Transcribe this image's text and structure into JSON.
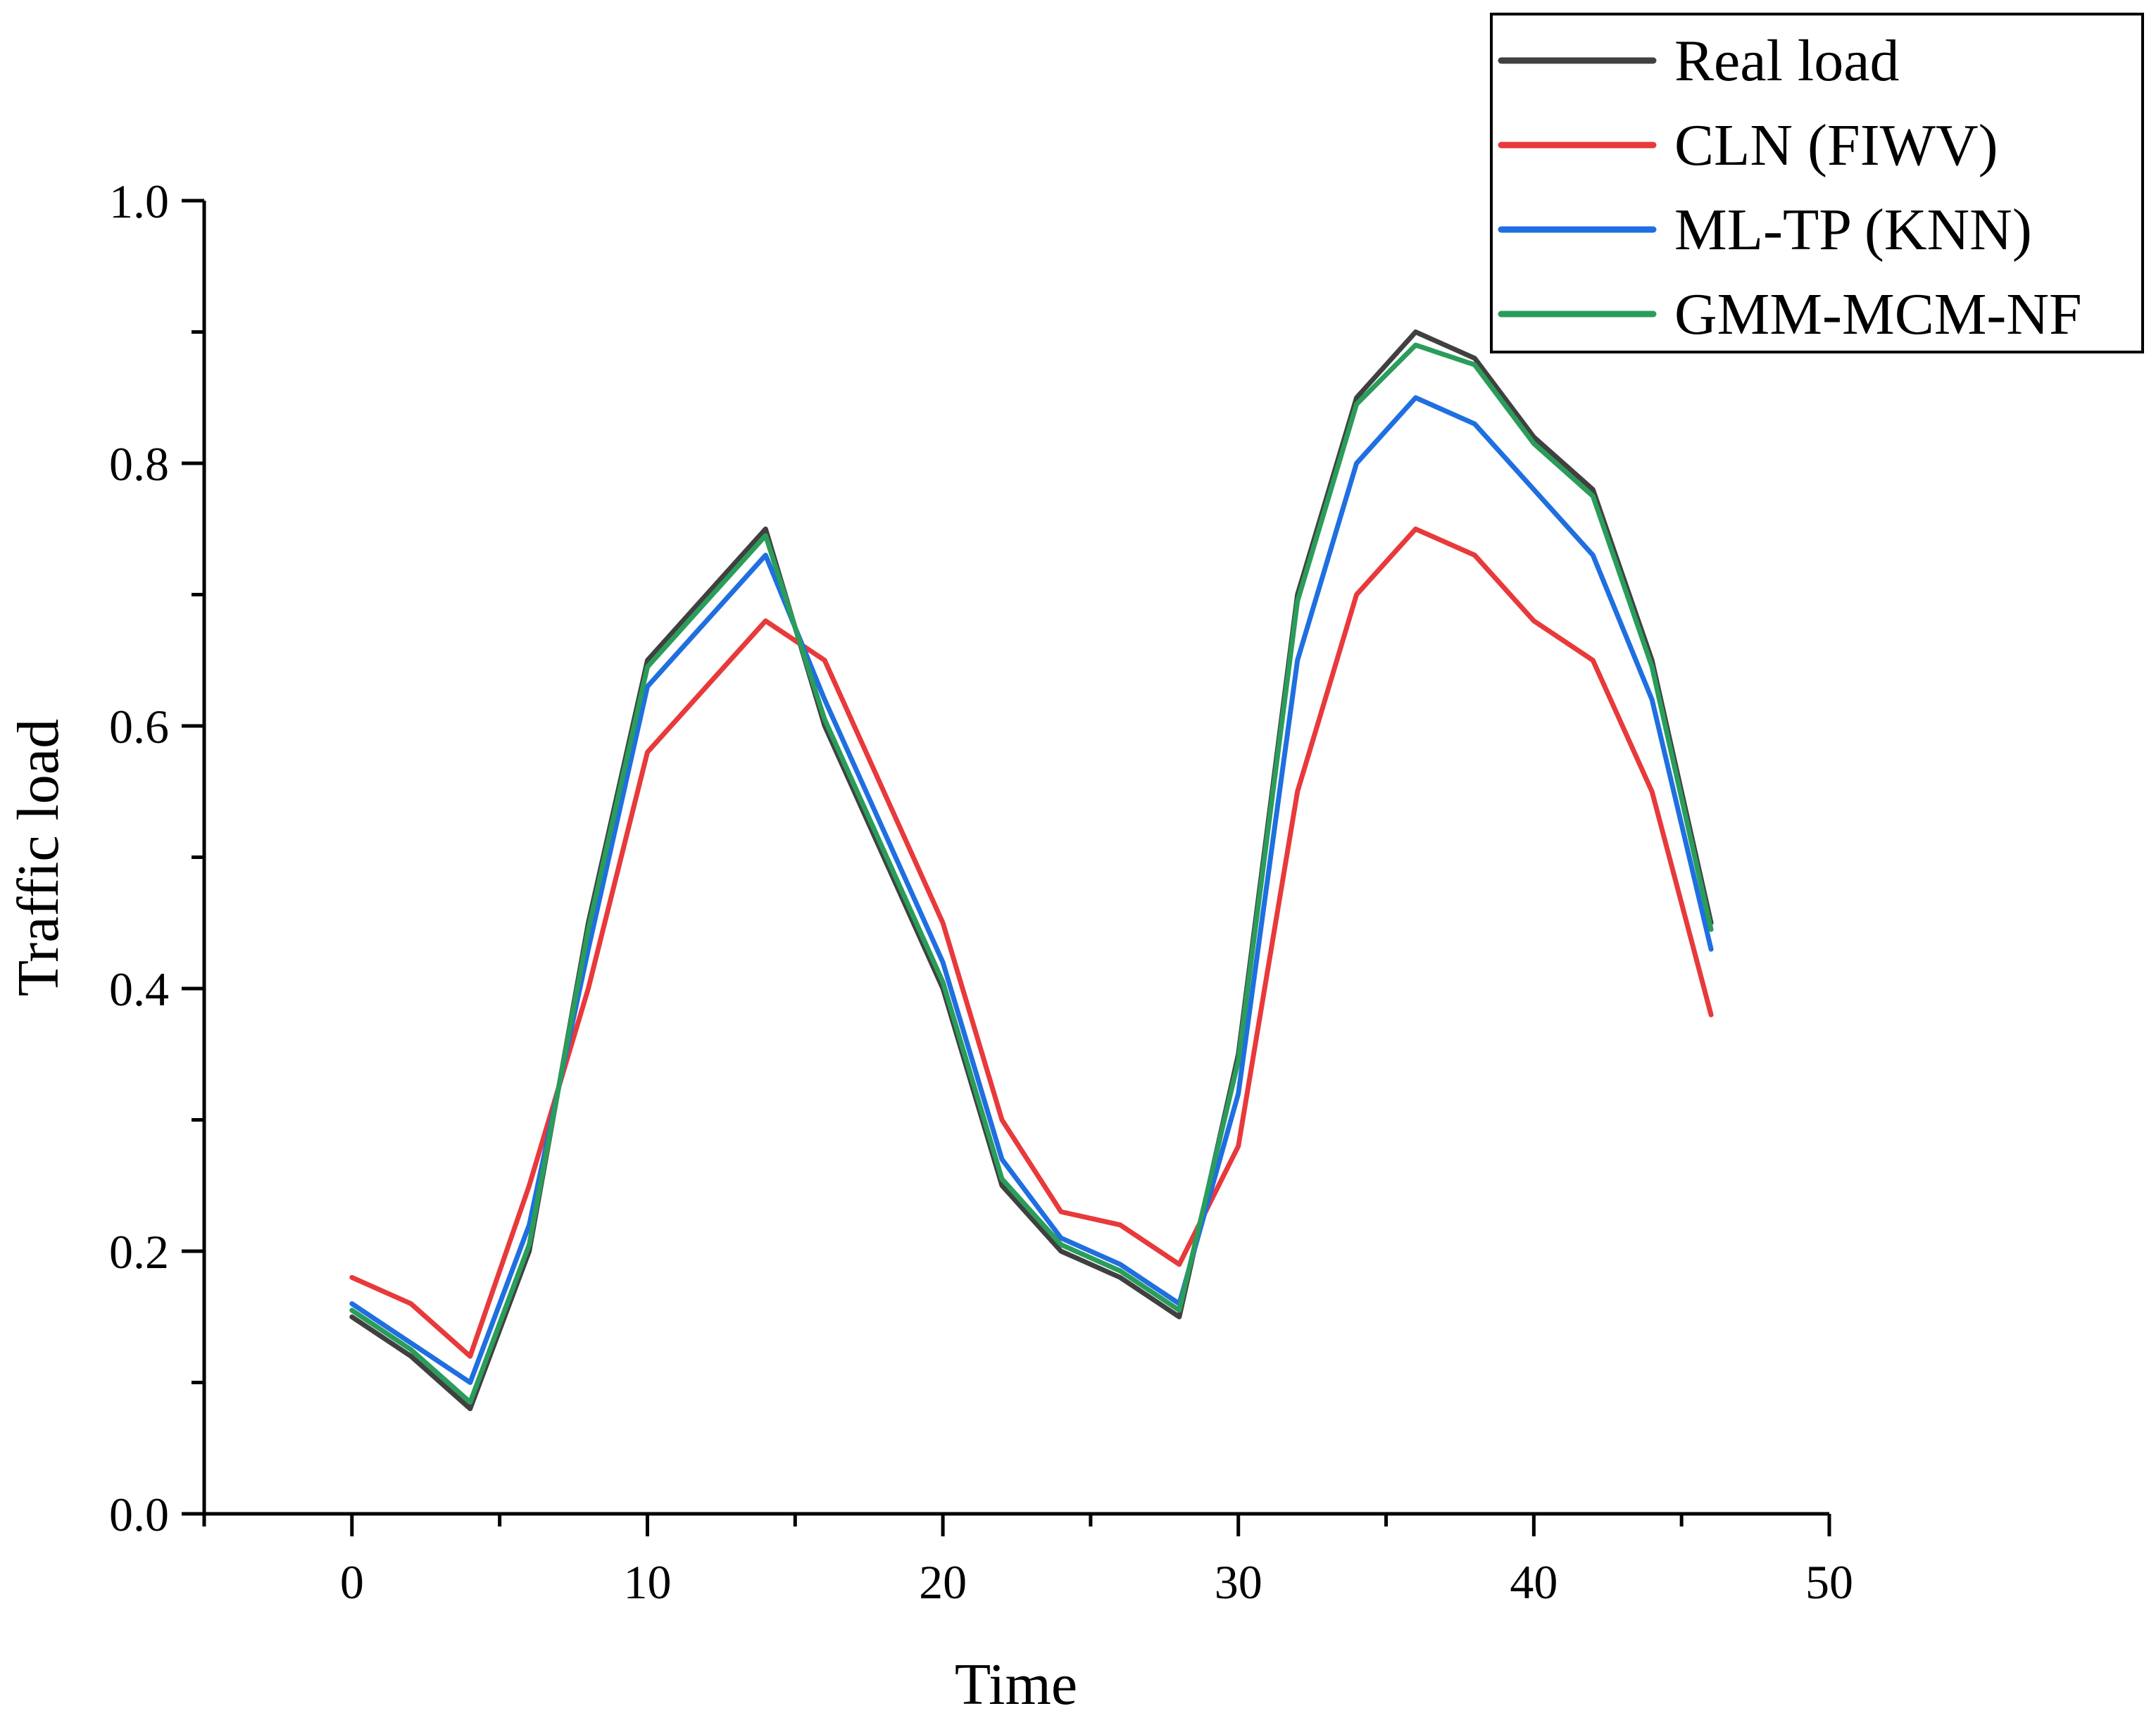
{
  "chart_data": {
    "type": "line",
    "title": "",
    "xlabel": "Time",
    "ylabel": "Traffic load",
    "xlim": [
      -5,
      50
    ],
    "ylim": [
      0.0,
      1.0
    ],
    "x_ticks": [
      0,
      10,
      20,
      30,
      40,
      50
    ],
    "x_tick_labels": [
      "0",
      "10",
      "20",
      "30",
      "40",
      "50"
    ],
    "x_minor_ticks": [
      -5,
      5,
      15,
      25,
      35,
      45
    ],
    "y_ticks": [
      0.0,
      0.2,
      0.4,
      0.6,
      0.8,
      1.0
    ],
    "y_tick_labels": [
      "0.0",
      "0.2",
      "0.4",
      "0.6",
      "0.8",
      "1.0"
    ],
    "y_minor_ticks": [
      0.1,
      0.3,
      0.5,
      0.7,
      0.9
    ],
    "grid": false,
    "legend_position": "top-right",
    "x": [
      0,
      2,
      4,
      6,
      8,
      10,
      12,
      14,
      16,
      18,
      20,
      22,
      24,
      26,
      28,
      30,
      32,
      34,
      36,
      38,
      40,
      42,
      44,
      46
    ],
    "series": [
      {
        "name": "Real load",
        "color": "#404040",
        "values": [
          0.15,
          0.12,
          0.08,
          0.2,
          0.45,
          0.65,
          0.7,
          0.75,
          0.6,
          0.5,
          0.4,
          0.25,
          0.2,
          0.18,
          0.15,
          0.35,
          0.7,
          0.85,
          0.9,
          0.88,
          0.82,
          0.78,
          0.65,
          0.45
        ]
      },
      {
        "name": "CLN (FIWV)",
        "color": "#e8393b",
        "values": [
          0.18,
          0.16,
          0.12,
          0.25,
          0.4,
          0.58,
          0.63,
          0.68,
          0.65,
          0.55,
          0.45,
          0.3,
          0.23,
          0.22,
          0.19,
          0.28,
          0.55,
          0.7,
          0.75,
          0.73,
          0.68,
          0.65,
          0.55,
          0.38
        ]
      },
      {
        "name": "ML-TP (KNN)",
        "color": "#1f6fe0",
        "values": [
          0.16,
          0.13,
          0.1,
          0.22,
          0.43,
          0.63,
          0.68,
          0.73,
          0.62,
          0.52,
          0.42,
          0.27,
          0.21,
          0.19,
          0.16,
          0.32,
          0.65,
          0.8,
          0.85,
          0.83,
          0.78,
          0.73,
          0.62,
          0.43
        ]
      },
      {
        "name": "GMM-MCM-NF",
        "color": "#2a9d5a",
        "values": [
          0.155,
          0.125,
          0.085,
          0.205,
          0.445,
          0.645,
          0.695,
          0.745,
          0.605,
          0.505,
          0.405,
          0.255,
          0.205,
          0.185,
          0.155,
          0.345,
          0.695,
          0.845,
          0.89,
          0.875,
          0.815,
          0.775,
          0.645,
          0.445
        ]
      }
    ]
  }
}
